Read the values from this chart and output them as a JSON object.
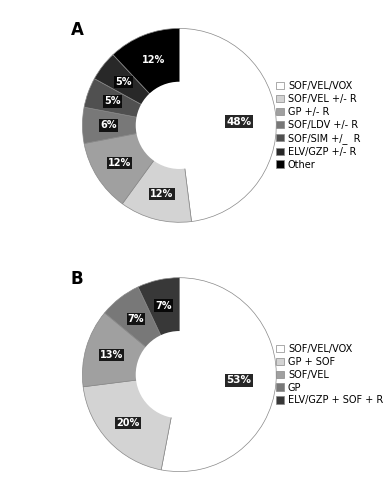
{
  "chart_A": {
    "label": "A",
    "values": [
      48,
      12,
      12,
      6,
      5,
      5,
      12
    ],
    "colors": [
      "#ffffff",
      "#d3d3d3",
      "#a0a0a0",
      "#787878",
      "#505050",
      "#282828",
      "#000000"
    ],
    "labels": [
      "48%",
      "12%",
      "12%",
      "6%",
      "5%",
      "5%",
      "12%"
    ],
    "legend_labels": [
      "SOF/VEL/VOX",
      "SOF/VEL +/- R",
      "GP +/- R",
      "SOF/LDV +/- R",
      "SOF/SIM +/_  R",
      "ELV/GZP +/- R",
      "Other"
    ],
    "legend_colors": [
      "#ffffff",
      "#d3d3d3",
      "#a0a0a0",
      "#787878",
      "#505050",
      "#282828",
      "#000000"
    ],
    "startangle": 90
  },
  "chart_B": {
    "label": "B",
    "values": [
      53,
      20,
      13,
      7,
      7
    ],
    "colors": [
      "#ffffff",
      "#d3d3d3",
      "#a0a0a0",
      "#787878",
      "#383838"
    ],
    "labels": [
      "53%",
      "20%",
      "13%",
      "7%",
      "7%"
    ],
    "legend_labels": [
      "SOF/VEL/VOX",
      "GP + SOF",
      "SOF/VEL",
      "GP",
      "ELV/GZP + SOF + R"
    ],
    "legend_colors": [
      "#ffffff",
      "#d3d3d3",
      "#a0a0a0",
      "#787878",
      "#383838"
    ],
    "startangle": 90
  },
  "bg_color": "#ffffff",
  "label_fontsize": 7.5,
  "legend_fontsize": 7.0,
  "donut_ratio": 0.45
}
